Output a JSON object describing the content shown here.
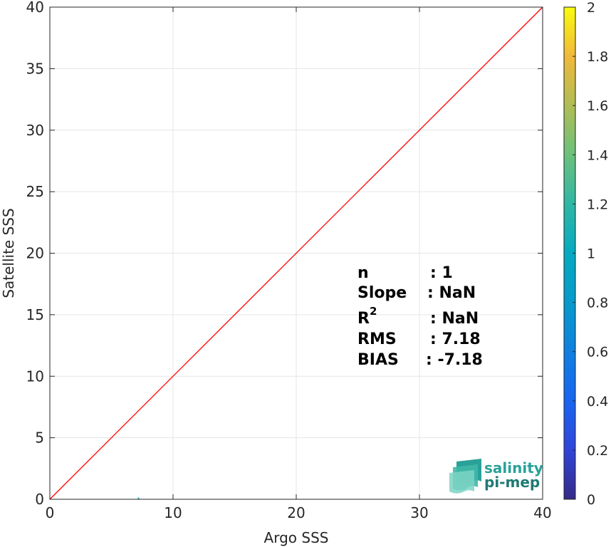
{
  "chart_data": {
    "type": "scatter",
    "xlabel": "Argo SSS",
    "ylabel": "Satellite SSS",
    "xlim": [
      0,
      40
    ],
    "ylim": [
      0,
      40
    ],
    "xticks": [
      0,
      10,
      20,
      30,
      40
    ],
    "yticks": [
      0,
      5,
      10,
      15,
      20,
      25,
      30,
      35,
      40
    ],
    "grid": true,
    "points": [
      {
        "x": 7.2,
        "y": 0.02
      }
    ],
    "reference_line": {
      "from": [
        0,
        0
      ],
      "to": [
        40,
        40
      ],
      "color": "#ff0000"
    },
    "colorbar": {
      "range": [
        0,
        2
      ],
      "ticks": [
        0,
        0.2,
        0.4,
        0.6,
        0.8,
        1,
        1.2,
        1.4,
        1.6,
        1.8,
        2
      ],
      "colormap": "parula"
    },
    "stats": [
      {
        "label": "n",
        "value": ": 1"
      },
      {
        "label": "Slope",
        "value": ": NaN"
      },
      {
        "label": "R",
        "sup": "2",
        "value": ": NaN"
      },
      {
        "label": "RMS",
        "value": ": 7.18"
      },
      {
        "label": "BIAS",
        "value": ": -7.18"
      }
    ]
  },
  "logo": {
    "line1": "salinity",
    "line2": "pi-mep",
    "color1": "#2aa198",
    "color2": "#1e7a73"
  },
  "colors": {
    "diagonal": "#ff0000",
    "grid": "#e6e6e6",
    "axis": "#262626"
  }
}
